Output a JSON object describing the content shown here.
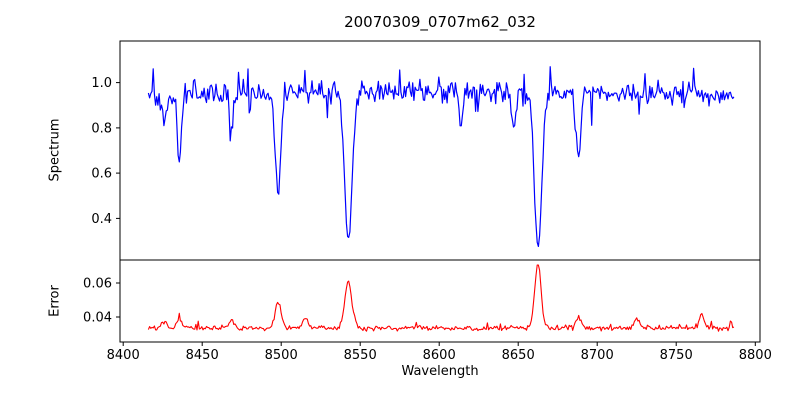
{
  "figure": {
    "title": "20070309_0707m62_032",
    "xlabel": "Wavelength",
    "spectrum_ylabel": "Spectrum",
    "error_ylabel": "Error"
  },
  "chart_data": {
    "type": "line",
    "title": "20070309_0707m62_032",
    "xlabel": "Wavelength",
    "legend": "none",
    "grid": false,
    "xlim": [
      8398.0,
      8803.0
    ],
    "x_ticks": [
      {
        "v": 8400,
        "label": "8400"
      },
      {
        "v": 8450,
        "label": "8450"
      },
      {
        "v": 8500,
        "label": "8500"
      },
      {
        "v": 8550,
        "label": "8550"
      },
      {
        "v": 8600,
        "label": "8600"
      },
      {
        "v": 8650,
        "label": "8650"
      },
      {
        "v": 8700,
        "label": "8700"
      },
      {
        "v": 8750,
        "label": "8750"
      },
      {
        "v": 8800,
        "label": "8800"
      }
    ],
    "data_range": [
      8416,
      8787
    ],
    "data_step": 0.75,
    "noise_seed": 20070309,
    "axis_color": "#000000",
    "spectrum": {
      "ylabel": "Spectrum",
      "color": "#0000ff",
      "ylim": [
        0.216,
        1.184
      ],
      "y_ticks": [
        {
          "v": 0.4,
          "label": "0.4"
        },
        {
          "v": 0.6,
          "label": "0.6"
        },
        {
          "v": 0.8,
          "label": "0.8"
        },
        {
          "v": 1.0,
          "label": "1.0"
        }
      ],
      "continuum": 0.945,
      "continuum_wave": 0.018,
      "noise_amplitude": 0.07,
      "absorption_lines": [
        {
          "center": 8426.0,
          "depth": 0.13,
          "sigma": 1.2
        },
        {
          "center": 8435.5,
          "depth": 0.3,
          "sigma": 1.4
        },
        {
          "center": 8468.5,
          "depth": 0.15,
          "sigma": 1.3
        },
        {
          "center": 8498.0,
          "depth": 0.46,
          "sigma": 1.8
        },
        {
          "center": 8542.5,
          "depth": 0.69,
          "sigma": 2.4
        },
        {
          "center": 8614.0,
          "depth": 0.12,
          "sigma": 1.3
        },
        {
          "center": 8647.0,
          "depth": 0.17,
          "sigma": 1.4
        },
        {
          "center": 8662.5,
          "depth": 0.7,
          "sigma": 2.4
        },
        {
          "center": 8688.0,
          "depth": 0.29,
          "sigma": 1.5
        }
      ]
    },
    "error": {
      "ylabel": "Error",
      "color": "#ff0000",
      "ylim": [
        0.0253,
        0.0735
      ],
      "y_ticks": [
        {
          "v": 0.04,
          "label": "0.04"
        },
        {
          "v": 0.06,
          "label": "0.06"
        }
      ],
      "baseline": 0.0335,
      "noise_amplitude": 0.0022,
      "spikes": [
        {
          "center": 8426.0,
          "height": 0.004,
          "sigma": 1.5
        },
        {
          "center": 8435.5,
          "height": 0.006,
          "sigma": 1.5
        },
        {
          "center": 8468.5,
          "height": 0.005,
          "sigma": 1.5
        },
        {
          "center": 8498.0,
          "height": 0.016,
          "sigma": 1.8
        },
        {
          "center": 8515.0,
          "height": 0.006,
          "sigma": 1.5
        },
        {
          "center": 8542.5,
          "height": 0.027,
          "sigma": 2.2
        },
        {
          "center": 8662.5,
          "height": 0.038,
          "sigma": 2.0
        },
        {
          "center": 8688.0,
          "height": 0.006,
          "sigma": 1.5
        },
        {
          "center": 8725.0,
          "height": 0.005,
          "sigma": 1.5
        },
        {
          "center": 8766.0,
          "height": 0.008,
          "sigma": 1.5
        }
      ]
    }
  }
}
